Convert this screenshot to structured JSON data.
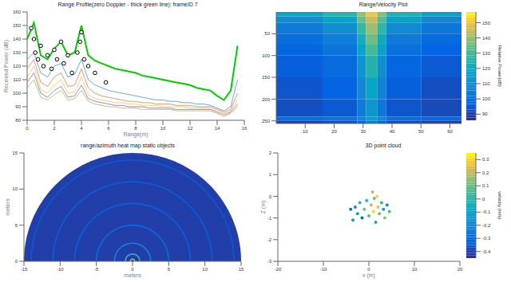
{
  "chart_data": [
    {
      "type": "line",
      "title": "Range Profile(zero Doppler - thick green line): frameID 7",
      "x_label": "Range(m)",
      "y_label": "Received Power (dB)",
      "x": [
        0,
        0.5,
        1,
        1.5,
        2,
        2.5,
        3,
        3.5,
        4,
        4.5,
        5,
        5.5,
        6,
        6.5,
        7,
        7.5,
        8,
        8.5,
        9,
        9.5,
        10,
        10.5,
        11,
        11.5,
        12,
        12.5,
        13,
        13.5,
        14,
        14.5,
        15,
        15.5
      ],
      "series": [
        {
          "color": "#00cc00",
          "values": [
            140,
            152,
            128,
            125,
            133,
            138,
            128,
            130,
            150,
            128,
            124,
            122,
            120,
            118,
            117,
            116,
            115,
            113,
            112,
            111,
            110,
            109,
            108,
            107,
            106,
            104,
            103,
            102,
            98,
            95,
            102,
            135
          ]
        },
        {
          "color": "#0072bd",
          "values": [
            125,
            130,
            115,
            112,
            120,
            122,
            112,
            114,
            125,
            110,
            106,
            104,
            102,
            101,
            100,
            99,
            98,
            97,
            96,
            95,
            95,
            94,
            94,
            93,
            93,
            92,
            92,
            91,
            89,
            87,
            90,
            110
          ]
        },
        {
          "color": "#d95319",
          "values": [
            118,
            125,
            108,
            105,
            112,
            115,
            105,
            106,
            118,
            104,
            100,
            98,
            97,
            96,
            95,
            94,
            94,
            93,
            93,
            92,
            92,
            92,
            91,
            91,
            91,
            90,
            90,
            90,
            88,
            86,
            88,
            100
          ]
        },
        {
          "color": "#edb120",
          "values": [
            112,
            120,
            103,
            100,
            106,
            110,
            100,
            101,
            112,
            99,
            96,
            95,
            94,
            93,
            93,
            92,
            92,
            91,
            91,
            91,
            90,
            90,
            90,
            90,
            89,
            89,
            89,
            89,
            87,
            85,
            87,
            95
          ]
        },
        {
          "color": "#7e2f8e",
          "values": [
            108,
            115,
            100,
            97,
            102,
            105,
            97,
            98,
            106,
            96,
            94,
            93,
            92,
            91,
            91,
            90,
            90,
            90,
            89,
            89,
            89,
            89,
            88,
            88,
            88,
            88,
            88,
            88,
            86,
            84,
            86,
            92
          ]
        },
        {
          "color": "#77ac30",
          "values": [
            104,
            110,
            97,
            95,
            99,
            102,
            95,
            96,
            102,
            94,
            92,
            91,
            90,
            90,
            89,
            89,
            89,
            88,
            88,
            88,
            88,
            88,
            87,
            87,
            87,
            87,
            87,
            87,
            85,
            83,
            85,
            90
          ]
        }
      ],
      "detections": {
        "marker": "circle",
        "color": "#000000",
        "x": [
          0.3,
          0.5,
          0.6,
          0.8,
          1.0,
          1.2,
          1.5,
          1.8,
          2.0,
          2.2,
          2.5,
          2.7,
          3.0,
          3.3,
          3.7,
          3.9,
          4.0,
          4.2,
          4.5,
          5.0,
          5.8
        ],
        "y": [
          148,
          140,
          130,
          125,
          135,
          120,
          128,
          118,
          132,
          125,
          138,
          122,
          128,
          115,
          130,
          138,
          145,
          125,
          120,
          115,
          108
        ]
      },
      "xlim": [
        0,
        16
      ],
      "xticks": [
        0,
        2,
        4,
        6,
        8,
        10,
        12,
        14,
        16
      ],
      "ylim": [
        80,
        160
      ],
      "yticks": [
        80,
        90,
        100,
        110,
        120,
        130,
        140,
        150,
        160
      ]
    },
    {
      "type": "heatmap",
      "title": "Range/Velocity Plot",
      "x_edges": [
        0,
        16,
        28,
        31,
        35,
        38,
        50,
        64
      ],
      "y_edges": [
        0,
        10,
        25,
        50,
        75,
        100,
        150,
        200,
        240,
        250,
        256
      ],
      "cells": [
        [
          118,
          125,
          140,
          150,
          138,
          124,
          116
        ],
        [
          110,
          118,
          135,
          145,
          132,
          117,
          108
        ],
        [
          104,
          110,
          128,
          140,
          126,
          109,
          103
        ],
        [
          100,
          105,
          122,
          135,
          120,
          104,
          99
        ],
        [
          98,
          102,
          118,
          130,
          116,
          101,
          97
        ],
        [
          96,
          99,
          112,
          124,
          110,
          98,
          95
        ],
        [
          94,
          97,
          108,
          118,
          106,
          96,
          93
        ],
        [
          93,
          95,
          104,
          112,
          103,
          94,
          92
        ],
        [
          100,
          102,
          108,
          115,
          107,
          101,
          99
        ],
        [
          90,
          92,
          98,
          104,
          97,
          91,
          89
        ]
      ],
      "xlim": [
        0,
        64
      ],
      "xticks": [
        10,
        20,
        30,
        40,
        50,
        60
      ],
      "ylim": [
        0,
        256
      ],
      "yticks": [
        50,
        100,
        150,
        200,
        250
      ],
      "colorbar": {
        "label": "Relative Power(dB)",
        "range": [
          86,
          157
        ],
        "ticks": [
          90,
          100,
          110,
          120,
          130,
          140,
          150
        ]
      }
    },
    {
      "type": "polar_heatmap",
      "title": "range/azimuth heat map static objects",
      "x_label": "meters",
      "y_label": "meters",
      "max_range": 15,
      "background_value": 90,
      "rings": {
        "range": [
          0.3,
          1,
          2.5,
          5,
          8,
          11,
          14
        ],
        "values": [
          140,
          128,
          108,
          100,
          97,
          96,
          95
        ]
      },
      "color_range": [
        86,
        157
      ],
      "xlim": [
        -15,
        15
      ],
      "xticks": [
        -15,
        -10,
        -5,
        0,
        5,
        10,
        15
      ],
      "ylim": [
        0,
        15
      ],
      "yticks": [
        0,
        5,
        10,
        15
      ]
    },
    {
      "type": "scatter",
      "title": "3D point cloud",
      "x_label": "x (m)",
      "y_label": "Z (m)",
      "x": [
        -3,
        -2.5,
        -2,
        -1.5,
        -1,
        -0.5,
        0,
        0.5,
        1,
        1.2,
        1.5,
        2,
        2.3,
        2.8,
        3.2,
        3.5,
        4,
        4.5,
        -4,
        -3.5,
        0.8,
        1.8
      ],
      "y": [
        -0.5,
        -0.8,
        -0.3,
        -1,
        -0.6,
        -0.2,
        -0.9,
        -0.4,
        -0.7,
        -0.1,
        -1.2,
        -0.5,
        -0.8,
        -0.3,
        -0.6,
        -1.0,
        -0.4,
        -0.7,
        -0.6,
        -1.1,
        0.2,
        0.0
      ],
      "velocity": [
        -0.2,
        -0.1,
        0,
        -0.3,
        0.1,
        0,
        0.05,
        0.2,
        0.3,
        0.1,
        -0.05,
        0.25,
        0.1,
        0,
        -0.1,
        0.15,
        -0.2,
        0.05,
        -0.3,
        -0.1,
        0.2,
        0.3
      ],
      "xlim": [
        -20,
        20
      ],
      "xticks": [
        -20,
        -10,
        0,
        10,
        20
      ],
      "ylim": [
        -3,
        2
      ],
      "yticks": [
        -3,
        -2,
        -1,
        0,
        1,
        2
      ],
      "colorbar": {
        "label": "velocity (m/s)",
        "range": [
          -0.45,
          0.35
        ],
        "ticks": [
          -0.4,
          -0.3,
          -0.2,
          -0.1,
          0,
          0.1,
          0.2,
          0.3
        ]
      }
    }
  ]
}
